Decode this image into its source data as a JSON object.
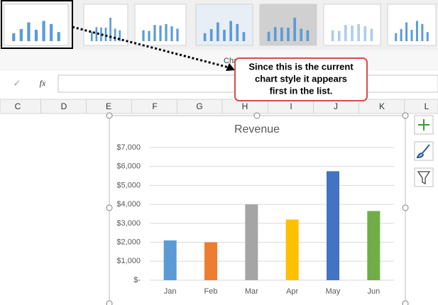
{
  "ribbon": {
    "label": "Cha"
  },
  "formula_bar": {
    "check": "✓",
    "fx": "fx"
  },
  "columns": [
    "C",
    "D",
    "E",
    "F",
    "G",
    "H",
    "I",
    "J",
    "K",
    "L"
  ],
  "callout": {
    "lines": [
      "Since this is the current",
      "chart style it appears",
      "first in the list."
    ]
  },
  "chart_data": {
    "type": "bar",
    "title": "Revenue",
    "categories": [
      "Jan",
      "Feb",
      "Mar",
      "Apr",
      "May",
      "Jun"
    ],
    "values": [
      2100,
      2000,
      4000,
      3200,
      5750,
      3650
    ],
    "colors": [
      "#5b9bd5",
      "#ed7d31",
      "#a5a5a5",
      "#ffc000",
      "#4472c4",
      "#70ad47"
    ],
    "ylim": [
      0,
      7000
    ],
    "yticks": [
      {
        "value": 0,
        "label": "$-"
      },
      {
        "value": 1000,
        "label": "$1,000"
      },
      {
        "value": 2000,
        "label": "$2,000"
      },
      {
        "value": 3000,
        "label": "$3,000"
      },
      {
        "value": 4000,
        "label": "$4,000"
      },
      {
        "value": 5000,
        "label": "$5,000"
      },
      {
        "value": 6000,
        "label": "$6,000"
      },
      {
        "value": 7000,
        "label": "$7,000"
      }
    ],
    "grid": true
  }
}
